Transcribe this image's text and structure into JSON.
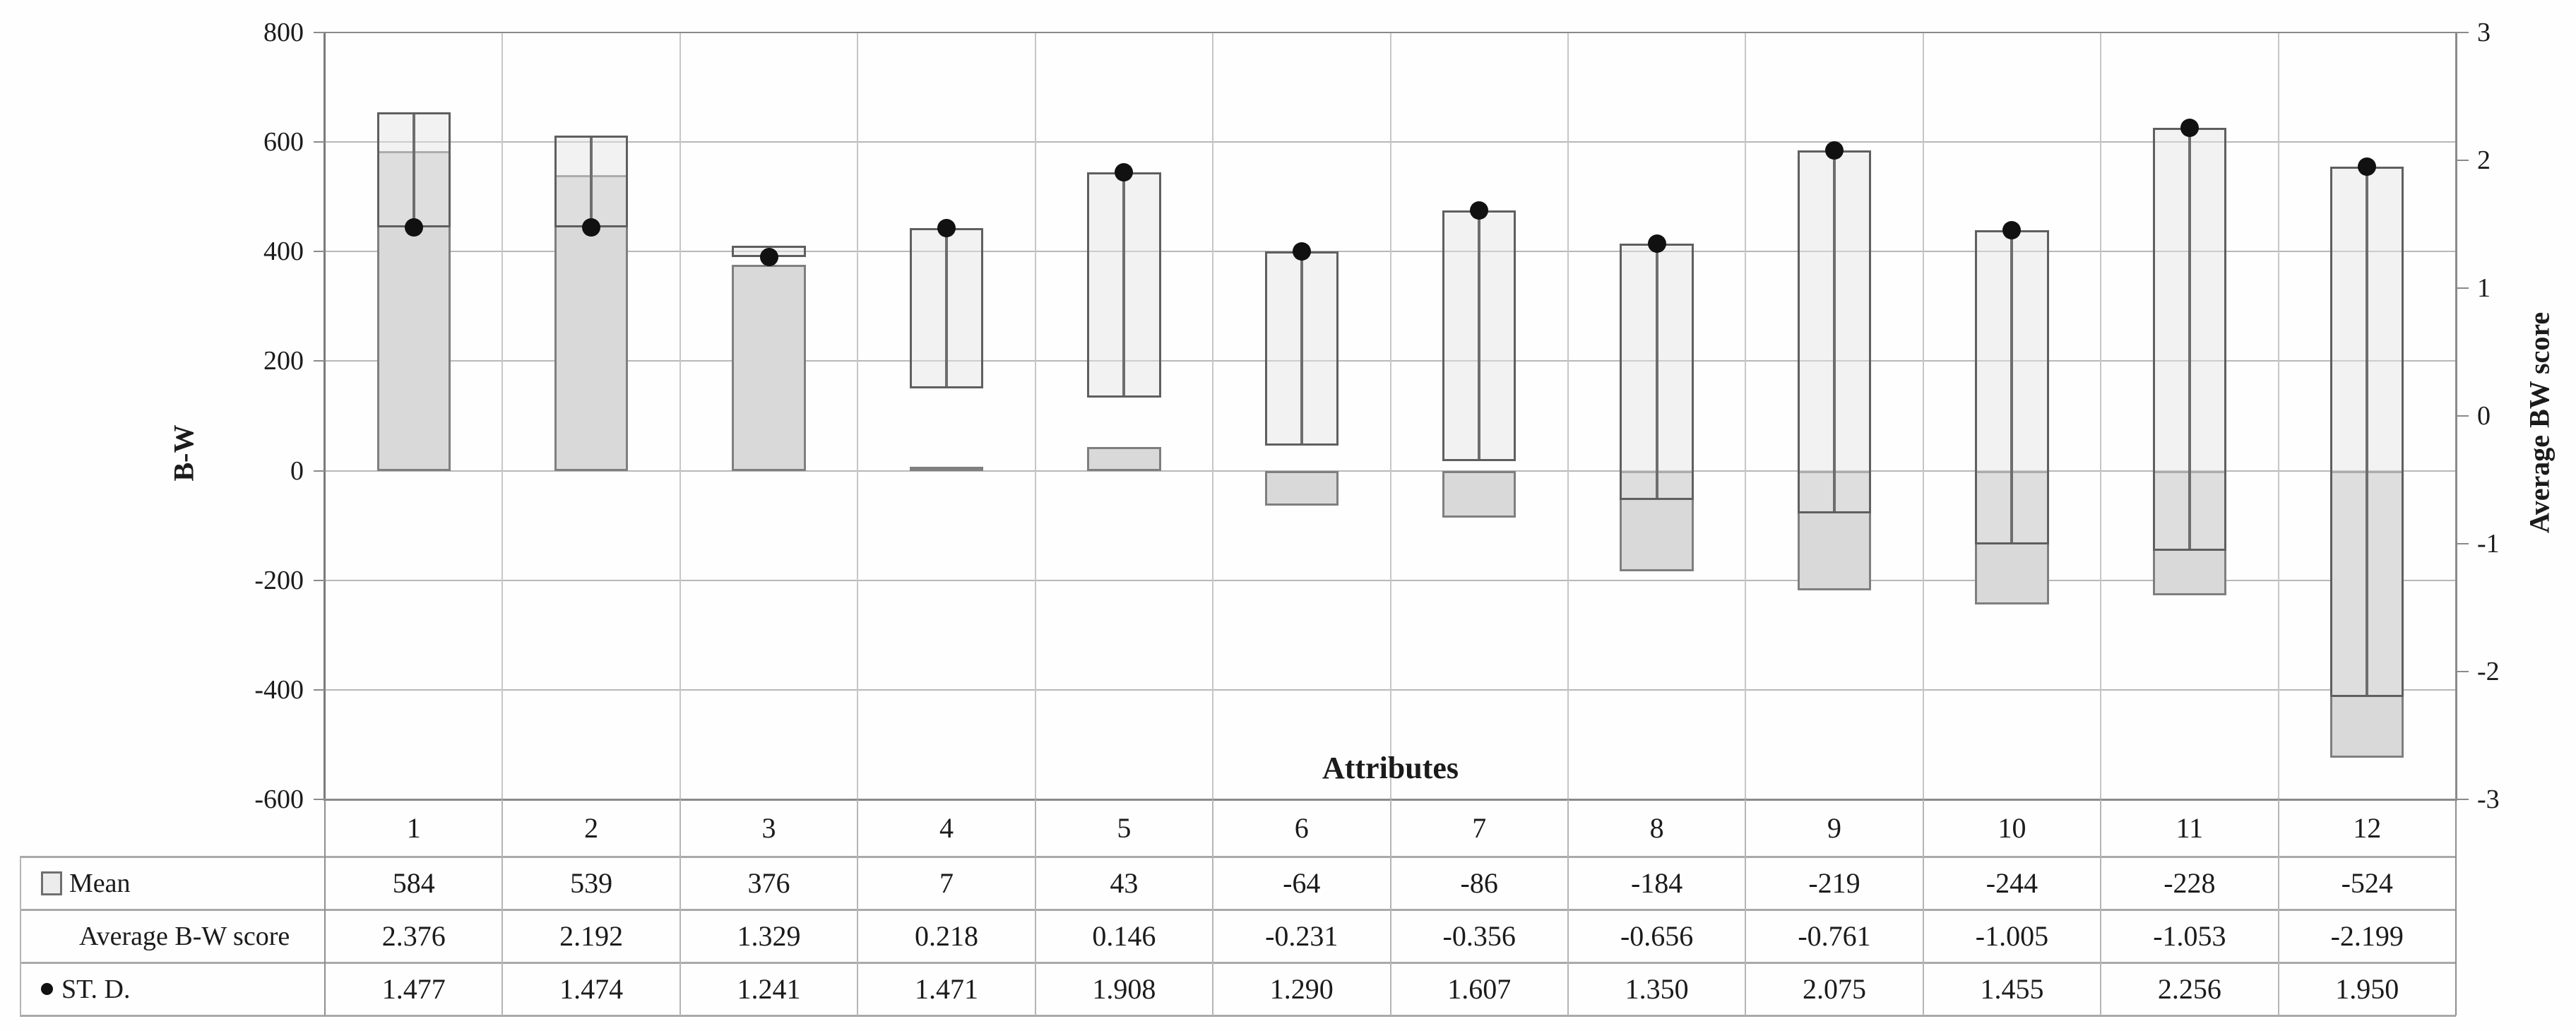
{
  "chart_data": {
    "type": "bar",
    "categories": [
      "1",
      "2",
      "3",
      "4",
      "5",
      "6",
      "7",
      "8",
      "9",
      "10",
      "11",
      "12"
    ],
    "series": [
      {
        "name": "Mean",
        "axis": "left",
        "style": "bar",
        "values": [
          584,
          539,
          376,
          7,
          43,
          -64,
          -86,
          -184,
          -219,
          -244,
          -228,
          -524
        ]
      },
      {
        "name": "Average B-W score",
        "axis": "right",
        "style": "range-box-end",
        "values": [
          2.376,
          2.192,
          1.329,
          0.218,
          0.146,
          -0.231,
          -0.356,
          -0.656,
          -0.761,
          -1.005,
          -1.053,
          -2.199
        ]
      },
      {
        "name": "ST. D.",
        "axis": "right",
        "style": "range-box-end-with-dot",
        "values": [
          1.477,
          1.474,
          1.241,
          1.471,
          1.908,
          1.29,
          1.607,
          1.35,
          2.075,
          1.455,
          2.256,
          1.95
        ]
      }
    ],
    "left_axis": {
      "title": "B-W",
      "min": -600,
      "max": 800,
      "step": 200,
      "tick_labels": [
        "800",
        "600",
        "400",
        "200",
        "0",
        "-200",
        "-400",
        "-600"
      ]
    },
    "right_axis": {
      "title": "Average BW score",
      "min": -3,
      "max": 3,
      "step": 1,
      "tick_labels": [
        "3",
        "2",
        "1",
        "0",
        "-1",
        "-2",
        "-3"
      ]
    },
    "xlabel": "Attributes",
    "grid": "horizontal-and-category-boundaries",
    "legend_position": "data-table-row-labels",
    "colors": {
      "bar_fill": "#d9d9d9",
      "bar_border": "#7f7f7f",
      "box_border": "#5f5f5f",
      "box_fill": "rgba(229,229,229,0.45)",
      "dot": "#111111",
      "gridline": "#b8b8b8",
      "table_line": "#a9a9a9",
      "text": "#1b1b1b"
    }
  },
  "table": {
    "header_row": [
      "1",
      "2",
      "3",
      "4",
      "5",
      "6",
      "7",
      "8",
      "9",
      "10",
      "11",
      "12"
    ],
    "rows": [
      {
        "label": "Mean",
        "icon": "mean-legend-square-icon",
        "values": [
          "584",
          "539",
          "376",
          "7",
          "43",
          "-64",
          "-86",
          "-184",
          "-219",
          "-244",
          "-228",
          "-524"
        ]
      },
      {
        "label": "Average B-W score",
        "icon": "none",
        "values": [
          "2.376",
          "2.192",
          "1.329",
          "0.218",
          "0.146",
          "-0.231",
          "-0.356",
          "-0.656",
          "-0.761",
          "-1.005",
          "-1.053",
          "-2.199"
        ]
      },
      {
        "label": "ST. D.",
        "icon": "std-legend-dot-icon",
        "values": [
          "1.477",
          "1.474",
          "1.241",
          "1.471",
          "1.908",
          "1.290",
          "1.607",
          "1.350",
          "2.075",
          "1.455",
          "2.256",
          "1.950"
        ]
      }
    ]
  }
}
